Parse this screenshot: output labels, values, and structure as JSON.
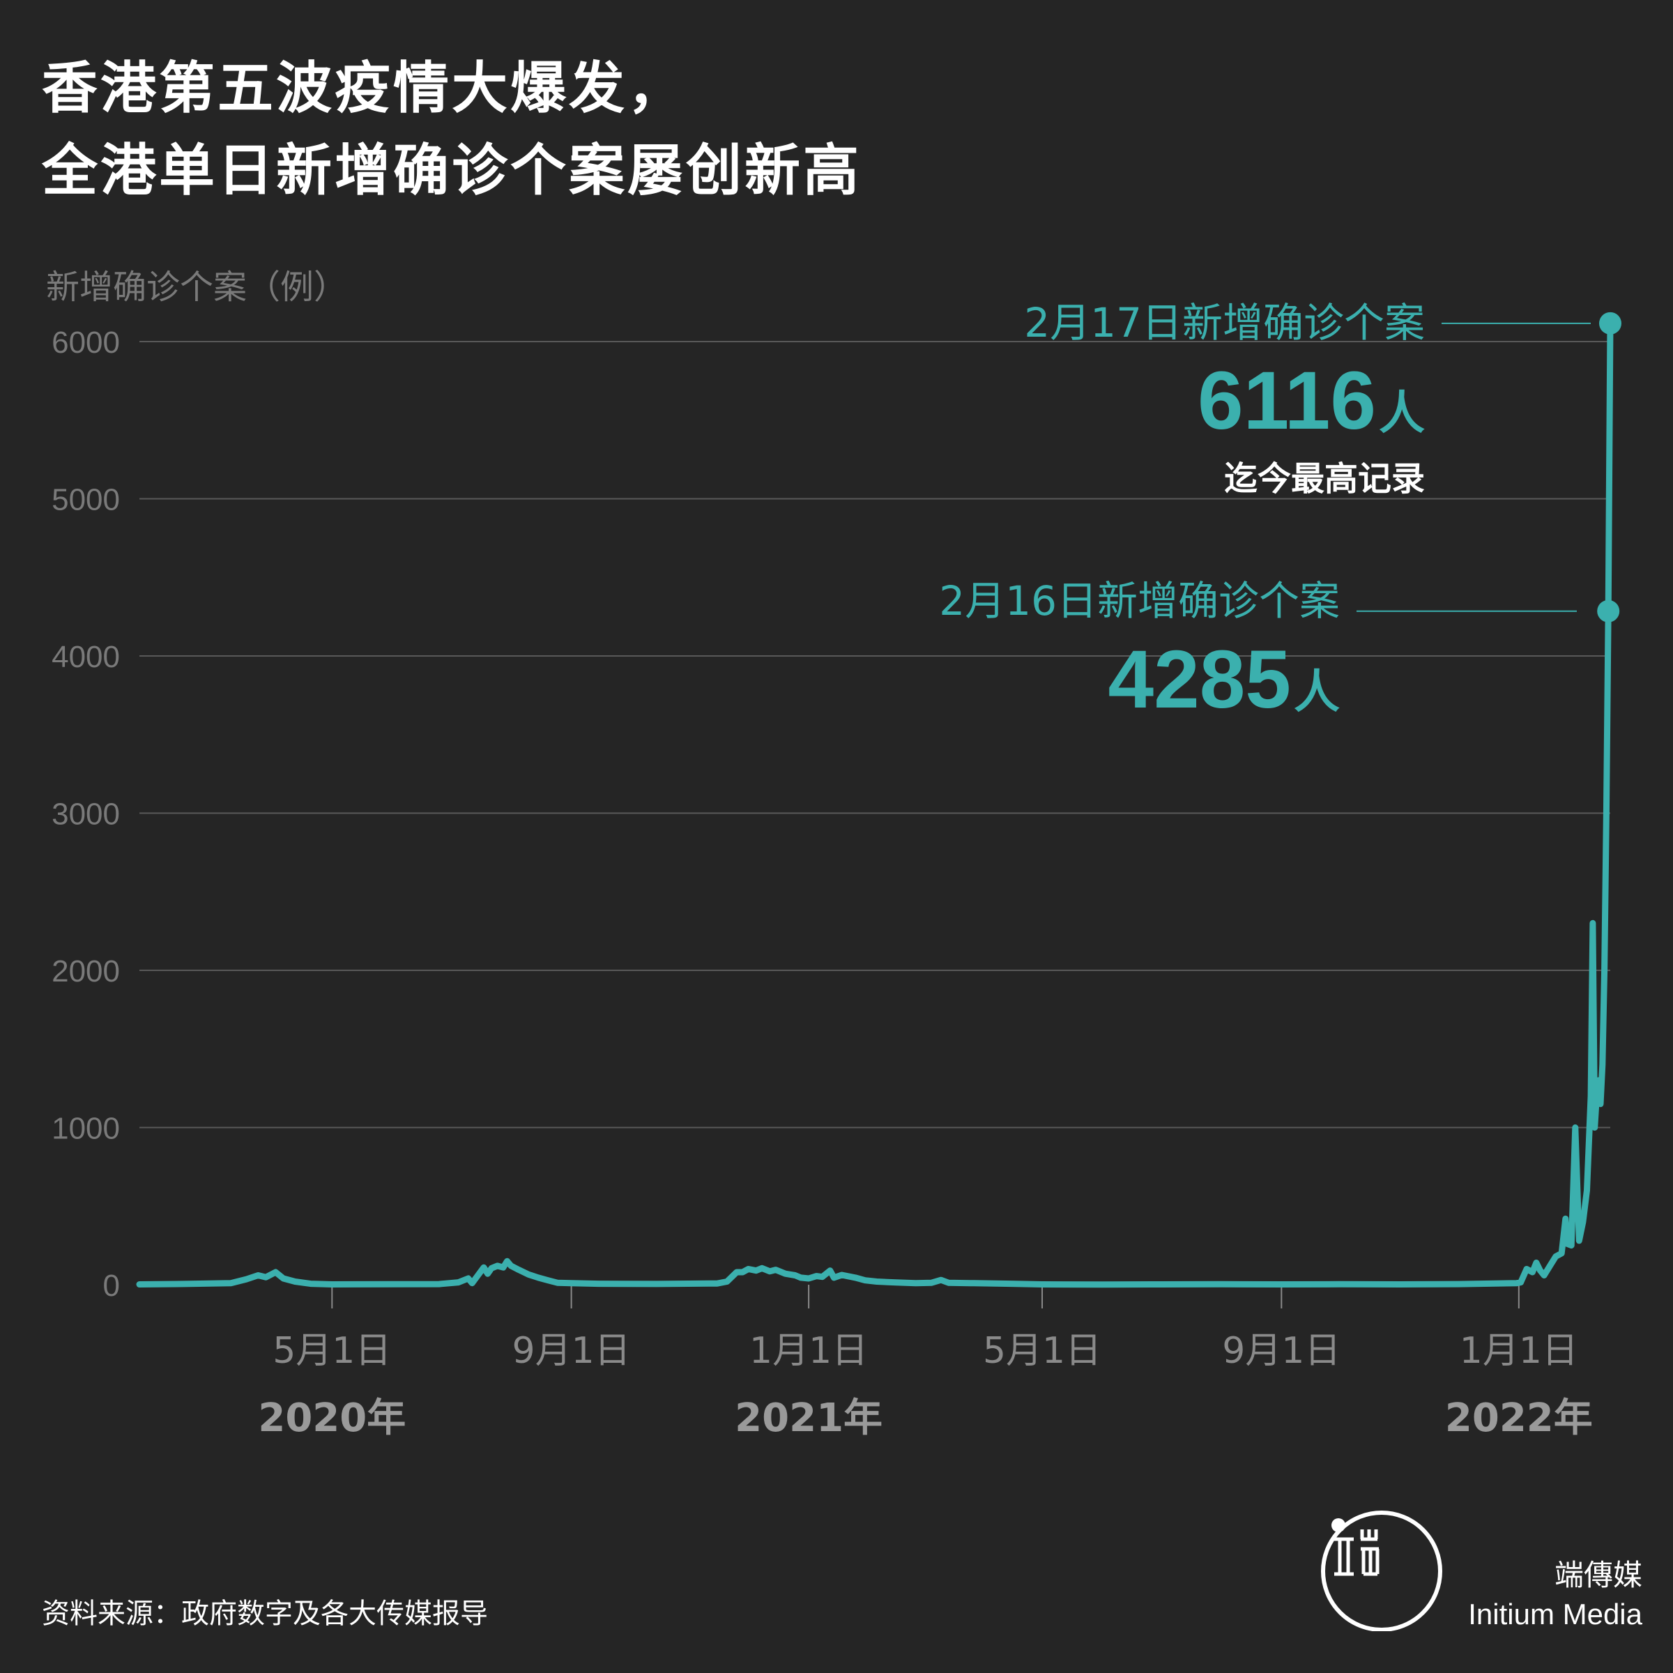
{
  "title": {
    "line1": "香港第五波疫情大爆发，",
    "line2": "全港单日新增确诊个案屡创新高"
  },
  "source": "资料来源：政府数字及各大传媒报导",
  "brand": {
    "name_cn": "端傳媒",
    "name_en": "Initium Media"
  },
  "colors": {
    "background": "#252525",
    "line": "#3bb0ae",
    "grid": "#595959",
    "axis_text": "#7a7a7a"
  },
  "chart_data": {
    "type": "line",
    "ylabel": "新增确诊个案（例）",
    "ylim": [
      0,
      6000
    ],
    "yticks": [
      0,
      1000,
      2000,
      3000,
      4000,
      5000,
      6000
    ],
    "ytick_labels": [
      "0",
      "1000",
      "2000",
      "3000",
      "4000",
      "5000",
      "6000"
    ],
    "xlim": [
      "2020-01-23",
      "2022-02-17"
    ],
    "xticks": [
      {
        "date": "2020-05-01",
        "label": "5月1日"
      },
      {
        "date": "2020-09-01",
        "label": "9月1日"
      },
      {
        "date": "2021-01-01",
        "label": "1月1日"
      },
      {
        "date": "2021-05-01",
        "label": "5月1日"
      },
      {
        "date": "2021-09-01",
        "label": "9月1日"
      },
      {
        "date": "2022-01-01",
        "label": "1月1日"
      }
    ],
    "year_labels": [
      {
        "date": "2020-05-01",
        "label": "2020年"
      },
      {
        "date": "2021-01-01",
        "label": "2021年"
      },
      {
        "date": "2022-01-01",
        "label": "2022年"
      }
    ],
    "grid": true,
    "series": [
      {
        "points": [
          [
            "2020-01-23",
            2
          ],
          [
            "2020-02-15",
            5
          ],
          [
            "2020-03-10",
            10
          ],
          [
            "2020-03-18",
            35
          ],
          [
            "2020-03-24",
            60
          ],
          [
            "2020-03-28",
            48
          ],
          [
            "2020-04-02",
            80
          ],
          [
            "2020-04-06",
            40
          ],
          [
            "2020-04-12",
            20
          ],
          [
            "2020-04-20",
            6
          ],
          [
            "2020-05-01",
            2
          ],
          [
            "2020-06-01",
            3
          ],
          [
            "2020-06-25",
            4
          ],
          [
            "2020-07-05",
            15
          ],
          [
            "2020-07-10",
            40
          ],
          [
            "2020-07-12",
            10
          ],
          [
            "2020-07-15",
            60
          ],
          [
            "2020-07-18",
            110
          ],
          [
            "2020-07-20",
            70
          ],
          [
            "2020-07-22",
            105
          ],
          [
            "2020-07-25",
            120
          ],
          [
            "2020-07-28",
            110
          ],
          [
            "2020-07-30",
            150
          ],
          [
            "2020-08-01",
            120
          ],
          [
            "2020-08-05",
            95
          ],
          [
            "2020-08-10",
            65
          ],
          [
            "2020-08-15",
            45
          ],
          [
            "2020-08-20",
            28
          ],
          [
            "2020-08-25",
            12
          ],
          [
            "2020-09-01",
            10
          ],
          [
            "2020-09-15",
            6
          ],
          [
            "2020-10-15",
            5
          ],
          [
            "2020-11-15",
            8
          ],
          [
            "2020-11-20",
            20
          ],
          [
            "2020-11-25",
            80
          ],
          [
            "2020-11-28",
            80
          ],
          [
            "2020-12-01",
            100
          ],
          [
            "2020-12-05",
            90
          ],
          [
            "2020-12-08",
            105
          ],
          [
            "2020-12-12",
            85
          ],
          [
            "2020-12-15",
            95
          ],
          [
            "2020-12-20",
            70
          ],
          [
            "2020-12-25",
            60
          ],
          [
            "2020-12-28",
            45
          ],
          [
            "2021-01-01",
            40
          ],
          [
            "2021-01-05",
            55
          ],
          [
            "2021-01-08",
            50
          ],
          [
            "2021-01-10",
            70
          ],
          [
            "2021-01-12",
            90
          ],
          [
            "2021-01-14",
            45
          ],
          [
            "2021-01-18",
            62
          ],
          [
            "2021-01-25",
            45
          ],
          [
            "2021-01-30",
            28
          ],
          [
            "2021-02-05",
            20
          ],
          [
            "2021-02-15",
            14
          ],
          [
            "2021-02-25",
            10
          ],
          [
            "2021-03-05",
            12
          ],
          [
            "2021-03-10",
            30
          ],
          [
            "2021-03-14",
            12
          ],
          [
            "2021-03-25",
            10
          ],
          [
            "2021-04-15",
            6
          ],
          [
            "2021-05-01",
            2
          ],
          [
            "2021-06-01",
            1
          ],
          [
            "2021-07-01",
            2
          ],
          [
            "2021-08-01",
            3
          ],
          [
            "2021-09-01",
            2
          ],
          [
            "2021-10-01",
            3
          ],
          [
            "2021-11-01",
            2
          ],
          [
            "2021-12-01",
            4
          ],
          [
            "2021-12-20",
            8
          ],
          [
            "2021-12-31",
            10
          ],
          [
            "2022-01-02",
            15
          ],
          [
            "2022-01-05",
            100
          ],
          [
            "2022-01-08",
            80
          ],
          [
            "2022-01-10",
            140
          ],
          [
            "2022-01-12",
            90
          ],
          [
            "2022-01-14",
            60
          ],
          [
            "2022-01-17",
            120
          ],
          [
            "2022-01-20",
            180
          ],
          [
            "2022-01-23",
            200
          ],
          [
            "2022-01-25",
            420
          ],
          [
            "2022-01-26",
            260
          ],
          [
            "2022-01-28",
            250
          ],
          [
            "2022-01-30",
            1000
          ],
          [
            "2022-02-01",
            280
          ],
          [
            "2022-02-03",
            400
          ],
          [
            "2022-02-05",
            600
          ],
          [
            "2022-02-07",
            1200
          ],
          [
            "2022-02-08",
            2300
          ],
          [
            "2022-02-09",
            1000
          ],
          [
            "2022-02-10",
            1200
          ],
          [
            "2022-02-11",
            1300
          ],
          [
            "2022-02-12",
            1150
          ],
          [
            "2022-02-13",
            1400
          ],
          [
            "2022-02-14",
            2000
          ],
          [
            "2022-02-15",
            3000
          ],
          [
            "2022-02-16",
            4285
          ],
          [
            "2022-02-17",
            6116
          ]
        ]
      }
    ],
    "annotations": [
      {
        "date": "2022-02-17",
        "value": 6116,
        "label": "2月17日新增确诊个案",
        "value_text": "6116",
        "unit": "人",
        "note": "迄今最高记录"
      },
      {
        "date": "2022-02-16",
        "value": 4285,
        "label": "2月16日新增确诊个案",
        "value_text": "4285",
        "unit": "人"
      }
    ]
  }
}
